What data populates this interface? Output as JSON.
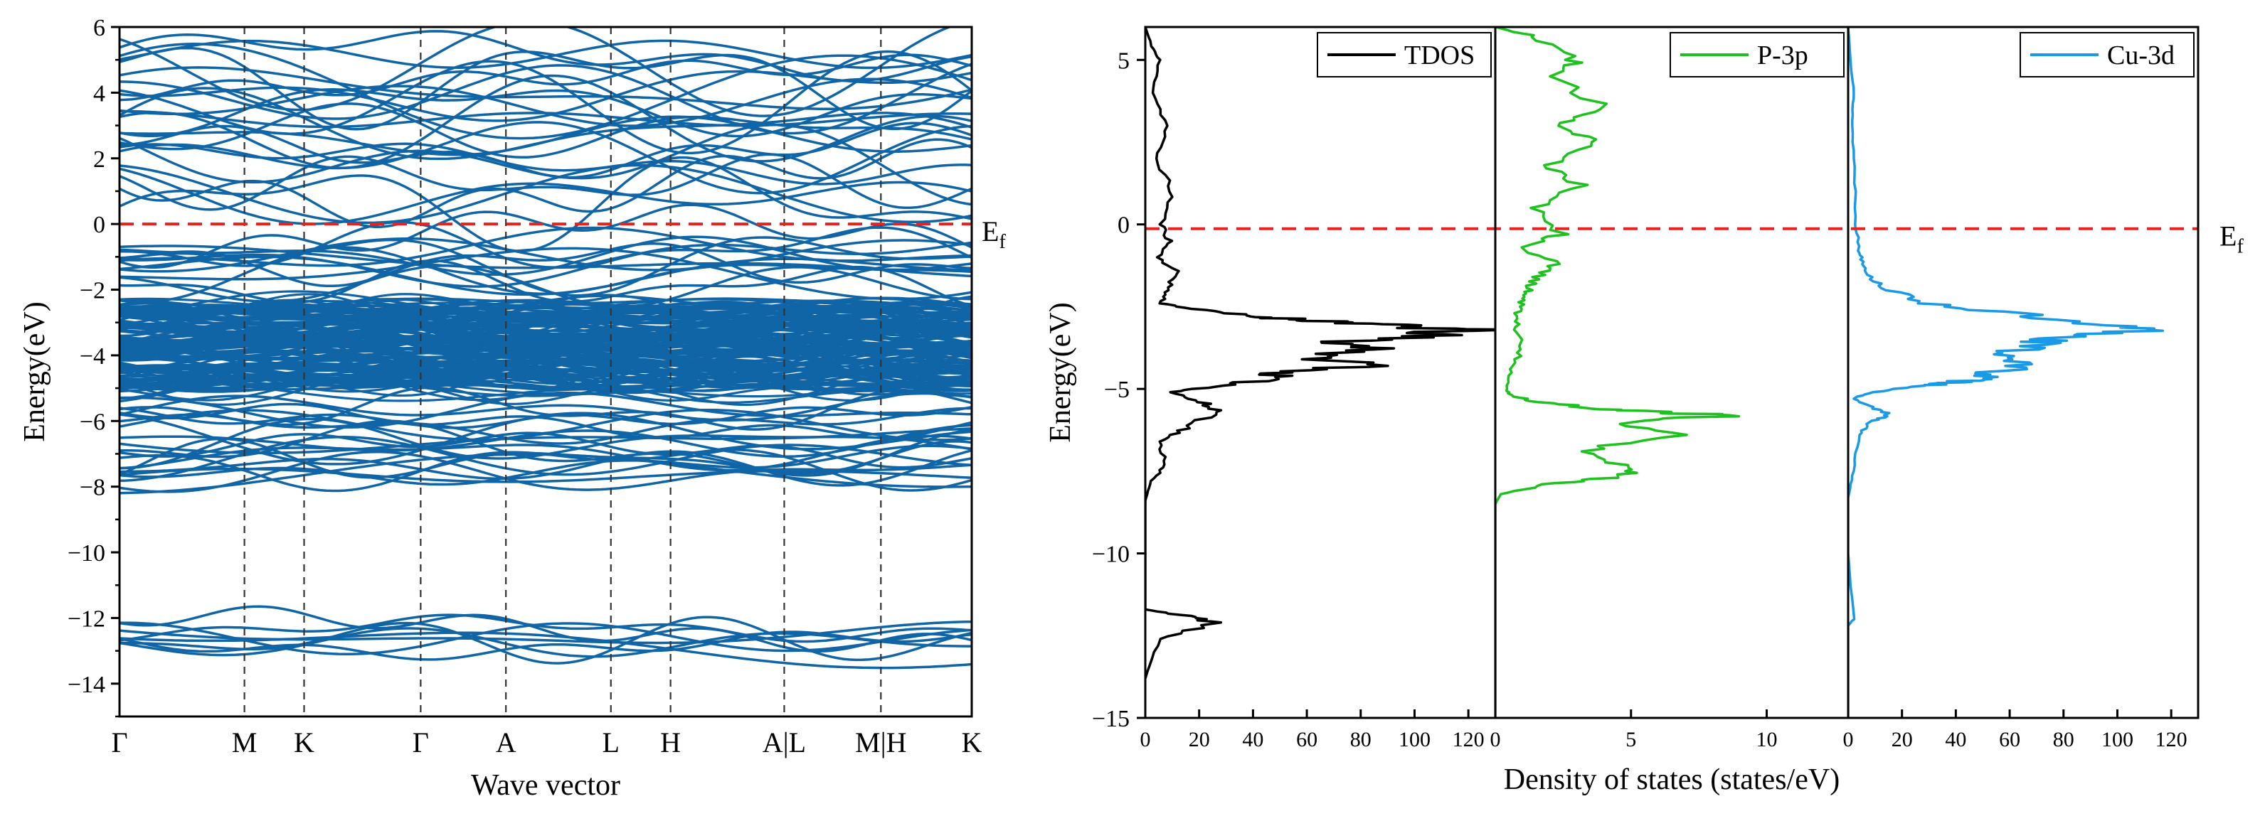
{
  "chart_data": [
    {
      "type": "line",
      "title": "",
      "xlabel": "Wave vector",
      "ylabel": "Energy(eV)",
      "ylim": [
        -15,
        6
      ],
      "yticks": [
        -14,
        -12,
        -10,
        -8,
        -6,
        -4,
        -2,
        0,
        2,
        4,
        6
      ],
      "kpath": [
        "Γ",
        "M",
        "K",
        "Γ",
        "A",
        "L",
        "H",
        "A|L",
        "M|H",
        "K"
      ],
      "fermi_label": "E",
      "fermi_label_sub": "f",
      "fermi_level": 0,
      "band_color": "#1065a6",
      "fermi_color": "#e8231f",
      "grid": false,
      "bands": {
        "valence_block": [
          -5.0,
          -2.4
        ],
        "lower_manifold": [
          -8.4,
          -5.5
        ],
        "deep_manifold": [
          -13.7,
          -11.9
        ],
        "conduction_manifold": [
          0.0,
          6.0
        ]
      }
    },
    {
      "type": "line",
      "title": "",
      "xlabel": "Density of states (states/eV)",
      "ylabel": "Energy(eV)",
      "ylim": [
        -15,
        6
      ],
      "yticks": [
        -15,
        -10,
        -5,
        0,
        5
      ],
      "fermi_label": "E",
      "fermi_label_sub": "f",
      "fermi_level": 0,
      "fermi_color": "#e8231f",
      "grid": false,
      "panels": [
        {
          "name": "TDOS",
          "color": "#000000",
          "xlim": [
            0,
            130
          ],
          "xticks": [
            0,
            20,
            40,
            60,
            80,
            100,
            120
          ],
          "legend": "top-right",
          "x": [
            0,
            2,
            5,
            3,
            8,
            4,
            10,
            6,
            9,
            5,
            12,
            8,
            6,
            20,
            40,
            60,
            80,
            95,
            118,
            100,
            70,
            90,
            60,
            85,
            50,
            45,
            30,
            10,
            20,
            28,
            15,
            5,
            8,
            2,
            0,
            0,
            0,
            15,
            26,
            5,
            0
          ],
          "y": [
            6,
            5.5,
            5,
            4,
            3,
            2,
            1,
            0,
            -0.5,
            -1,
            -1.5,
            -2,
            -2.4,
            -2.6,
            -2.8,
            -2.9,
            -3.0,
            -3.1,
            -3.2,
            -3.4,
            -3.6,
            -3.8,
            -4.0,
            -4.3,
            -4.5,
            -4.7,
            -4.9,
            -5.1,
            -5.4,
            -5.7,
            -6.2,
            -6.6,
            -7.3,
            -7.8,
            -8.4,
            -10,
            -11.7,
            -11.9,
            -12.1,
            -12.6,
            -13.8
          ]
        },
        {
          "name": "P-3p",
          "color": "#1ec21e",
          "xlim": [
            0,
            13
          ],
          "xticks": [
            0,
            5,
            10
          ],
          "legend": "top-right",
          "x": [
            0,
            1.5,
            3,
            2,
            4,
            2.5,
            3.8,
            2,
            3.2,
            1.5,
            2.5,
            1,
            2.2,
            1.5,
            1.2,
            1.0,
            0.8,
            0.8,
            1.0,
            0.6,
            0.4,
            0.6,
            1.5,
            4,
            6,
            9,
            5,
            6.5,
            3,
            5.5,
            4,
            2,
            0.2,
            0,
            0,
            0
          ],
          "y": [
            6,
            5.7,
            5,
            4.5,
            3.5,
            3,
            2.5,
            1.8,
            1.2,
            0.5,
            -0.3,
            -0.7,
            -1.2,
            -1.6,
            -2.0,
            -2.3,
            -2.7,
            -3.2,
            -3.8,
            -4.4,
            -5.0,
            -5.2,
            -5.4,
            -5.6,
            -5.7,
            -5.8,
            -6.0,
            -6.4,
            -6.9,
            -7.4,
            -7.7,
            -7.9,
            -8.2,
            -8.5,
            -12,
            -15
          ]
        },
        {
          "name": "Cu-3d",
          "color": "#1a9ae6",
          "xlim": [
            0,
            130
          ],
          "xticks": [
            0,
            20,
            40,
            60,
            80,
            100,
            120
          ],
          "legend": "top-right",
          "x": [
            0,
            1,
            2,
            1.5,
            2.5,
            3,
            4,
            6,
            8,
            15,
            30,
            60,
            80,
            110,
            85,
            70,
            60,
            65,
            55,
            48,
            40,
            30,
            8,
            2,
            10,
            15,
            8,
            4,
            2,
            0,
            0,
            2,
            0,
            0
          ],
          "y": [
            6,
            5,
            4,
            3,
            1.5,
            0,
            -0.8,
            -1.2,
            -1.6,
            -2.0,
            -2.4,
            -2.7,
            -3.0,
            -3.2,
            -3.4,
            -3.6,
            -3.9,
            -4.2,
            -4.5,
            -4.7,
            -4.8,
            -4.9,
            -5.1,
            -5.3,
            -5.6,
            -5.8,
            -6.0,
            -6.4,
            -7.5,
            -8.3,
            -10,
            -12,
            -12.2,
            -15
          ]
        }
      ]
    }
  ]
}
